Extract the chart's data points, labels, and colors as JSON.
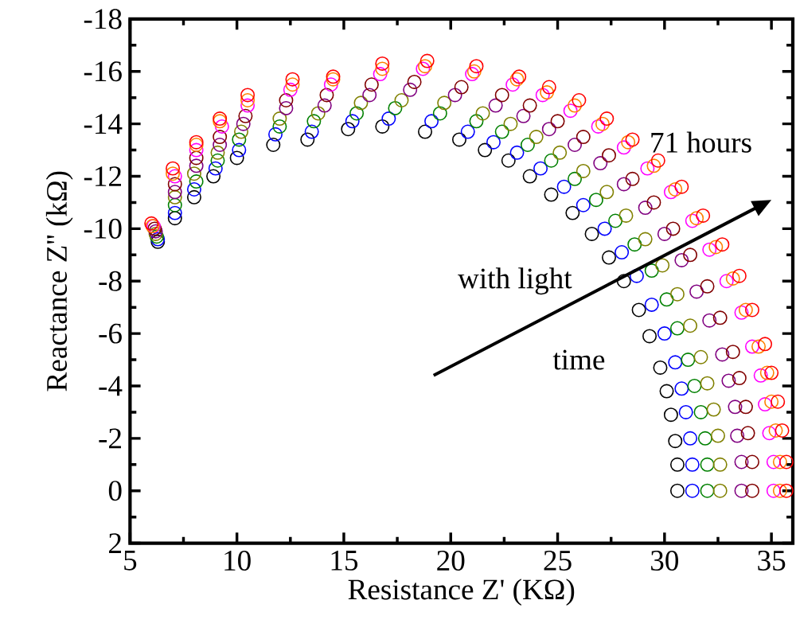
{
  "chart_data": {
    "type": "scatter",
    "xlabel": "Resistance Z' (KΩ)",
    "ylabel": "Reactance Z'' (kΩ)",
    "marker": "circle",
    "xlim": [
      5,
      36
    ],
    "ylim": [
      2,
      -18
    ],
    "xticks": [
      5,
      10,
      15,
      20,
      25,
      30,
      35
    ],
    "yticks": [
      -18,
      -16,
      -14,
      -12,
      -10,
      -8,
      -6,
      -4,
      -2,
      0,
      2
    ],
    "annotations": [
      "71 hours",
      "with light",
      "time"
    ],
    "series": [
      {
        "color": "#000000",
        "x": [
          6.3,
          7.1,
          8.0,
          8.9,
          10.0,
          11.7,
          13.3,
          15.2,
          16.8,
          18.8,
          20.4,
          21.6,
          22.7,
          23.7,
          24.7,
          25.7,
          26.6,
          27.4,
          28.1,
          28.8,
          29.3,
          29.8,
          30.1,
          30.3,
          30.5,
          30.6,
          30.6
        ],
        "values": [
          -9.5,
          -10.4,
          -11.2,
          -12.0,
          -12.7,
          -13.2,
          -13.4,
          -13.8,
          -13.9,
          -13.7,
          -13.4,
          -13.0,
          -12.6,
          -12.0,
          -11.3,
          -10.6,
          -9.8,
          -8.9,
          -8.0,
          -6.9,
          -5.9,
          -4.7,
          -3.8,
          -2.9,
          -1.9,
          -1.0,
          0
        ]
      },
      {
        "color": "#0000ff",
        "x": [
          6.3,
          7.1,
          8.0,
          9.0,
          10.1,
          11.8,
          13.5,
          15.4,
          17.1,
          19.1,
          20.8,
          22.0,
          23.1,
          24.2,
          25.3,
          26.2,
          27.2,
          28.0,
          28.7,
          29.4,
          30.0,
          30.5,
          30.8,
          31.0,
          31.2,
          31.3,
          31.3
        ],
        "values": [
          -9.6,
          -10.6,
          -11.5,
          -12.3,
          -13.0,
          -13.6,
          -13.7,
          -14.1,
          -14.2,
          -14.1,
          -13.7,
          -13.3,
          -12.9,
          -12.3,
          -11.6,
          -10.9,
          -10.0,
          -9.1,
          -8.2,
          -7.1,
          -6.0,
          -4.9,
          -3.9,
          -3.0,
          -2.0,
          -1.0,
          0
        ]
      },
      {
        "color": "#008000",
        "x": [
          6.25,
          7.1,
          8.1,
          9.1,
          10.1,
          12.0,
          13.6,
          15.6,
          17.4,
          19.5,
          21.2,
          22.4,
          23.6,
          24.7,
          25.8,
          26.8,
          27.7,
          28.6,
          29.4,
          30.1,
          30.6,
          31.1,
          31.4,
          31.7,
          31.9,
          32.0,
          32.0
        ],
        "values": [
          -9.7,
          -10.9,
          -11.8,
          -12.6,
          -13.4,
          -13.9,
          -14.1,
          -14.4,
          -14.6,
          -14.4,
          -14.1,
          -13.7,
          -13.2,
          -12.6,
          -11.9,
          -11.1,
          -10.3,
          -9.4,
          -8.4,
          -7.3,
          -6.2,
          -5.0,
          -4.0,
          -3.0,
          -2.0,
          -1.0,
          0
        ]
      },
      {
        "color": "#808000",
        "x": [
          6.2,
          7.1,
          8.0,
          9.1,
          10.2,
          12.0,
          13.8,
          15.8,
          17.7,
          19.7,
          21.5,
          22.8,
          24.0,
          25.1,
          26.2,
          27.3,
          28.2,
          29.1,
          29.9,
          30.6,
          31.2,
          31.7,
          32.0,
          32.3,
          32.5,
          32.6,
          32.6
        ],
        "values": [
          -9.8,
          -11.2,
          -12.1,
          -12.9,
          -13.7,
          -14.2,
          -14.4,
          -14.8,
          -14.9,
          -14.8,
          -14.4,
          -14.0,
          -13.5,
          -12.9,
          -12.2,
          -11.4,
          -10.5,
          -9.6,
          -8.6,
          -7.5,
          -6.3,
          -5.1,
          -4.1,
          -3.1,
          -2.1,
          -1.0,
          0
        ]
      },
      {
        "color": "#800080",
        "x": [
          6.2,
          7.1,
          8.1,
          9.2,
          10.3,
          12.3,
          14.1,
          16.2,
          18.1,
          20.2,
          22.1,
          23.4,
          24.6,
          25.8,
          27.0,
          28.1,
          29.1,
          30.0,
          30.8,
          31.5,
          32.1,
          32.7,
          33.0,
          33.3,
          33.4,
          33.6,
          33.6
        ],
        "values": [
          -9.9,
          -11.4,
          -12.4,
          -13.2,
          -14.0,
          -14.6,
          -14.7,
          -15.1,
          -15.3,
          -15.1,
          -14.7,
          -14.3,
          -13.8,
          -13.2,
          -12.5,
          -11.7,
          -10.8,
          -9.8,
          -8.8,
          -7.6,
          -6.5,
          -5.2,
          -4.2,
          -3.2,
          -2.1,
          -1.1,
          0
        ]
      },
      {
        "color": "#800000",
        "x": [
          6.15,
          7.1,
          8.1,
          9.2,
          10.4,
          12.3,
          14.2,
          16.3,
          18.3,
          20.5,
          22.4,
          23.7,
          25.0,
          26.2,
          27.4,
          28.5,
          29.5,
          30.4,
          31.2,
          32.0,
          32.6,
          33.2,
          33.5,
          33.8,
          33.9,
          34.1,
          34.1
        ],
        "values": [
          -10.0,
          -11.7,
          -12.7,
          -13.5,
          -14.3,
          -14.9,
          -15.1,
          -15.5,
          -15.6,
          -15.4,
          -15.1,
          -14.7,
          -14.1,
          -13.5,
          -12.8,
          -11.9,
          -11.0,
          -10.0,
          -9.0,
          -7.8,
          -6.6,
          -5.3,
          -4.3,
          -3.2,
          -2.2,
          -1.1,
          0
        ]
      },
      {
        "color": "#ff00ff",
        "x": [
          6.1,
          7.1,
          8.1,
          9.3,
          10.5,
          12.5,
          14.4,
          16.7,
          18.7,
          21.0,
          22.9,
          24.3,
          25.6,
          26.9,
          28.1,
          29.2,
          30.3,
          31.3,
          32.1,
          32.9,
          33.6,
          34.1,
          34.5,
          34.7,
          34.9,
          35.1,
          35.1
        ],
        "values": [
          -10.1,
          -12.0,
          -13.0,
          -13.9,
          -14.7,
          -15.3,
          -15.5,
          -15.9,
          -16.1,
          -15.9,
          -15.5,
          -15.1,
          -14.5,
          -13.9,
          -13.1,
          -12.3,
          -11.4,
          -10.3,
          -9.2,
          -8.0,
          -6.8,
          -5.5,
          -4.4,
          -3.3,
          -2.2,
          -1.1,
          0
        ]
      },
      {
        "color": "#ff8000",
        "x": [
          6.05,
          7.0,
          8.1,
          9.2,
          10.5,
          12.6,
          14.5,
          16.8,
          18.8,
          21.1,
          23.1,
          24.5,
          25.8,
          27.1,
          28.3,
          29.5,
          30.5,
          31.5,
          32.4,
          33.2,
          33.8,
          34.4,
          34.8,
          35.0,
          35.2,
          35.4,
          35.4
        ],
        "values": [
          -10.1,
          -12.1,
          -13.2,
          -14.1,
          -14.9,
          -15.5,
          -15.7,
          -16.1,
          -16.2,
          -16.0,
          -15.7,
          -15.2,
          -14.7,
          -14.0,
          -13.3,
          -12.4,
          -11.5,
          -10.4,
          -9.3,
          -8.1,
          -6.9,
          -5.5,
          -4.5,
          -3.4,
          -2.3,
          -1.1,
          0
        ]
      },
      {
        "color": "#ff0000",
        "x": [
          6.0,
          7.0,
          8.1,
          9.2,
          10.5,
          12.6,
          14.5,
          16.8,
          18.9,
          21.2,
          23.2,
          24.6,
          26.0,
          27.3,
          28.5,
          29.7,
          30.8,
          31.8,
          32.7,
          33.5,
          34.1,
          34.7,
          35.0,
          35.3,
          35.5,
          35.7,
          35.7
        ],
        "values": [
          -10.2,
          -12.3,
          -13.3,
          -14.2,
          -15.1,
          -15.7,
          -15.8,
          -16.3,
          -16.4,
          -16.2,
          -15.8,
          -15.4,
          -14.9,
          -14.2,
          -13.4,
          -12.6,
          -11.6,
          -10.5,
          -9.4,
          -8.2,
          -6.9,
          -5.6,
          -4.5,
          -3.4,
          -2.3,
          -1.1,
          0
        ]
      }
    ]
  }
}
